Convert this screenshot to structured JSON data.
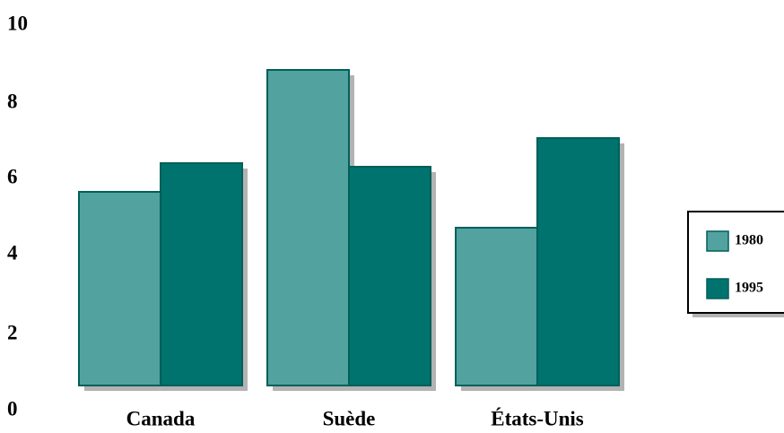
{
  "chart_data": {
    "type": "bar",
    "title": "",
    "xlabel": "",
    "ylabel": "",
    "categories": [
      "Canada",
      "Suède",
      "États-Unis"
    ],
    "series": [
      {
        "name": "1980",
        "color": "#52a2a0",
        "values": [
          5.4,
          8.8,
          4.4
        ]
      },
      {
        "name": "1995",
        "color": "#00736e",
        "values": [
          6.2,
          6.1,
          6.9
        ]
      }
    ],
    "ylim": [
      0,
      10
    ],
    "yticks": [
      "0",
      "2",
      "4",
      "6",
      "8",
      "10"
    ],
    "grid": false,
    "legend_position": "right"
  },
  "colors": {
    "border": "#005f5a",
    "shadow": "#b3b3b3"
  }
}
